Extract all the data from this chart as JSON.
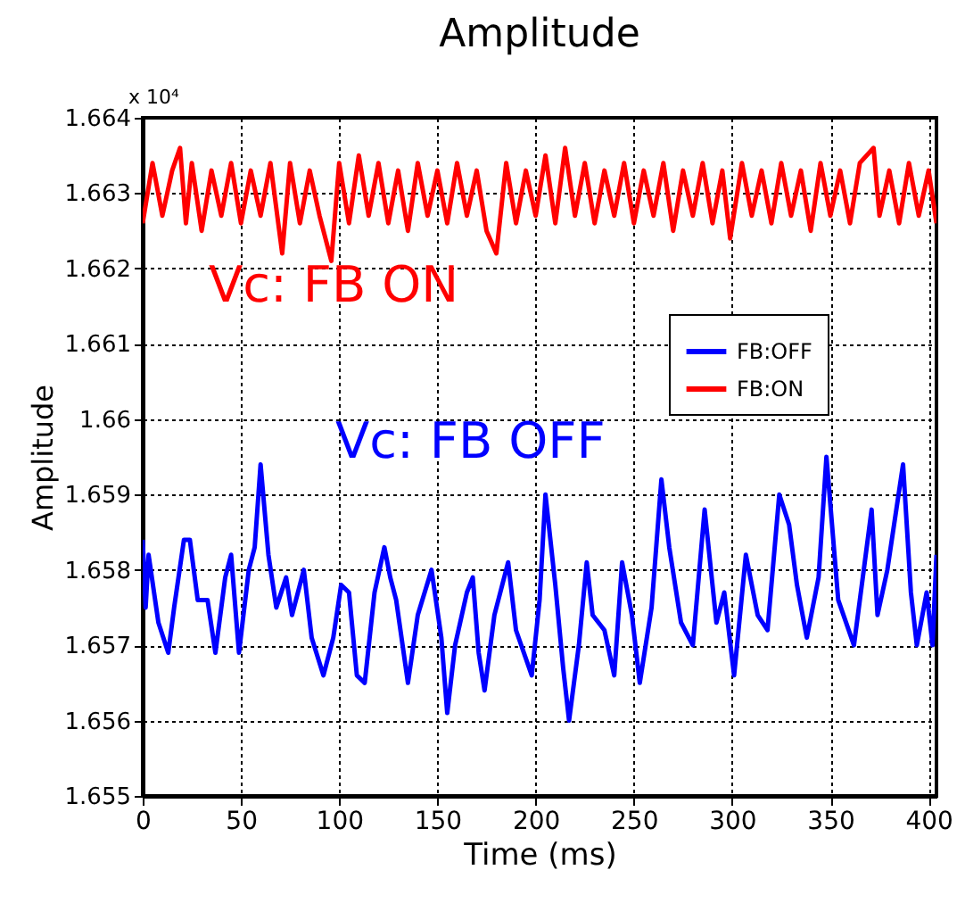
{
  "chart_data": {
    "type": "line",
    "title": "Amplitude",
    "xlabel": "Time (ms)",
    "ylabel": "Amplitude",
    "xlim": [
      0,
      404
    ],
    "xticks": [
      0,
      50,
      100,
      150,
      200,
      250,
      300,
      350,
      400
    ],
    "ylim": [
      1.655,
      1.664
    ],
    "yticks": [
      1.655,
      1.656,
      1.657,
      1.658,
      1.659,
      1.66,
      1.661,
      1.662,
      1.663,
      1.664
    ],
    "grid": true,
    "legend": "top right",
    "line_style": "solid",
    "marker": "none",
    "annotations": [
      "Vc: FB OFF",
      "Vc: FB ON",
      "x 10⁴"
    ],
    "series": [
      {
        "name": "FB:OFF",
        "color": "#0000ff",
        "x": [
          0,
          1.5,
          3,
          8,
          13,
          16,
          21,
          24,
          28,
          33,
          37,
          42,
          45,
          49,
          54,
          57,
          60,
          64,
          68,
          73,
          76,
          82,
          86,
          92,
          97,
          101,
          105,
          109,
          113,
          118,
          123,
          126,
          129,
          135,
          140,
          147,
          152,
          155,
          159,
          165,
          168,
          171,
          174,
          179,
          186,
          190,
          198,
          202,
          205,
          210,
          214,
          217,
          222,
          226,
          229,
          235,
          240,
          244,
          249,
          253,
          259,
          264,
          268,
          274,
          280,
          286,
          292,
          296,
          301,
          307,
          313,
          318,
          324,
          329,
          333,
          338,
          344,
          348,
          354,
          362,
          366,
          371,
          374,
          379,
          387,
          391,
          394,
          399,
          402,
          404
        ],
        "values": [
          1.6584,
          1.6575,
          1.6582,
          1.6573,
          1.6569,
          1.6575,
          1.6584,
          1.6584,
          1.6576,
          1.6576,
          1.6569,
          1.6579,
          1.6582,
          1.6569,
          1.658,
          1.6583,
          1.6594,
          1.6582,
          1.6575,
          1.6579,
          1.6574,
          1.658,
          1.6571,
          1.6566,
          1.6571,
          1.6578,
          1.6577,
          1.6566,
          1.6565,
          1.6577,
          1.6583,
          1.6579,
          1.6576,
          1.6565,
          1.6574,
          1.658,
          1.6571,
          1.6561,
          1.657,
          1.6577,
          1.6579,
          1.6569,
          1.6564,
          1.6574,
          1.6581,
          1.6572,
          1.6566,
          1.6576,
          1.659,
          1.6578,
          1.6567,
          1.656,
          1.657,
          1.6581,
          1.6574,
          1.6572,
          1.6566,
          1.6581,
          1.6574,
          1.6565,
          1.6575,
          1.6592,
          1.6583,
          1.6573,
          1.657,
          1.6588,
          1.6573,
          1.6577,
          1.6566,
          1.6582,
          1.6574,
          1.6572,
          1.659,
          1.6586,
          1.6578,
          1.6571,
          1.6579,
          1.6595,
          1.6576,
          1.657,
          1.6578,
          1.6588,
          1.6574,
          1.658,
          1.6594,
          1.6577,
          1.657,
          1.6577,
          1.657,
          1.6582
        ]
      },
      {
        "name": "FB:ON",
        "color": "#ff0000",
        "x": [
          0,
          5,
          10,
          15,
          19,
          22,
          25,
          30,
          35,
          40,
          45,
          50,
          55,
          60,
          65,
          71,
          75,
          80,
          85,
          90,
          96,
          100,
          105,
          110,
          115,
          120,
          125,
          130,
          135,
          140,
          145,
          150,
          155,
          160,
          165,
          170,
          175,
          180,
          185,
          190,
          195,
          200,
          205,
          210,
          215,
          220,
          225,
          230,
          235,
          240,
          245,
          250,
          255,
          260,
          265,
          270,
          275,
          280,
          285,
          290,
          295,
          299,
          305,
          310,
          315,
          320,
          325,
          330,
          335,
          340,
          345,
          350,
          355,
          360,
          365,
          372,
          375,
          380,
          385,
          390,
          395,
          400,
          404
        ],
        "values": [
          1.6626,
          1.6634,
          1.6627,
          1.6633,
          1.6636,
          1.6626,
          1.6634,
          1.6625,
          1.6633,
          1.6627,
          1.6634,
          1.6626,
          1.6633,
          1.6627,
          1.6634,
          1.6622,
          1.6634,
          1.6626,
          1.6633,
          1.6627,
          1.6621,
          1.6634,
          1.6626,
          1.6635,
          1.6627,
          1.6634,
          1.6626,
          1.6633,
          1.6625,
          1.6634,
          1.6627,
          1.6633,
          1.6626,
          1.6634,
          1.6627,
          1.6633,
          1.6625,
          1.6622,
          1.6634,
          1.6626,
          1.6633,
          1.6627,
          1.6635,
          1.6626,
          1.6636,
          1.6627,
          1.6634,
          1.6626,
          1.6633,
          1.6627,
          1.6634,
          1.6626,
          1.6633,
          1.6627,
          1.6634,
          1.6625,
          1.6633,
          1.6627,
          1.6634,
          1.6626,
          1.6633,
          1.6624,
          1.6634,
          1.6627,
          1.6633,
          1.6626,
          1.6634,
          1.6627,
          1.6633,
          1.6625,
          1.6634,
          1.6627,
          1.6633,
          1.6626,
          1.6634,
          1.6636,
          1.6627,
          1.6633,
          1.6626,
          1.6634,
          1.6627,
          1.6633,
          1.6626
        ]
      }
    ]
  }
}
